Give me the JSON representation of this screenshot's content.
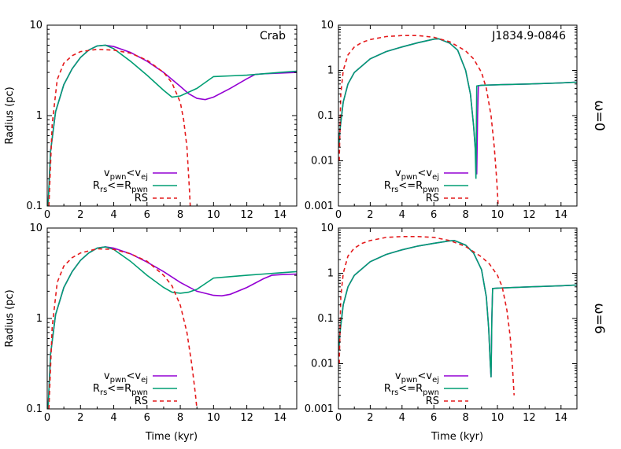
{
  "figure": {
    "y_axis_label": "Radius (pc)",
    "x_axis_label": "Time (kyr)",
    "row_labels": [
      "ω=0",
      "ω=6"
    ]
  },
  "colors": {
    "purple": "#9400d3",
    "teal": "#009e73",
    "red": "#e41a1c",
    "axis": "#000000"
  },
  "chart_data": [
    {
      "id": "crab-omega0",
      "type": "line",
      "title": "Crab",
      "xlabel": "",
      "ylabel": "Radius (pc)",
      "xlim": [
        0,
        15
      ],
      "ylim": [
        0.1,
        10
      ],
      "yscale": "log",
      "xticks": [
        "0",
        "2",
        "4",
        "6",
        "8",
        "10",
        "12",
        "14"
      ],
      "yticks": [
        "0.1",
        "1",
        "10"
      ],
      "legend": [
        "vpwn<vej",
        "Rrs<=Rpwn",
        "RS"
      ],
      "series": [
        {
          "name": "vpwn<vej",
          "color": "purple",
          "dash": false,
          "x": [
            0.05,
            0.2,
            0.5,
            1,
            1.5,
            2,
            2.5,
            3,
            3.5,
            4,
            5,
            6,
            7,
            8,
            8.5,
            9,
            9.5,
            10,
            11,
            12,
            12.5,
            13,
            14,
            15
          ],
          "y": [
            0.1,
            0.4,
            1.1,
            2.2,
            3.3,
            4.4,
            5.3,
            5.9,
            6.0,
            5.8,
            5.0,
            4.0,
            3.0,
            2.1,
            1.75,
            1.55,
            1.5,
            1.6,
            2.0,
            2.55,
            2.85,
            2.9,
            2.95,
            3.0
          ]
        },
        {
          "name": "Rrs<=Rpwn",
          "color": "teal",
          "dash": false,
          "x": [
            0.05,
            0.2,
            0.5,
            1,
            1.5,
            2,
            2.5,
            3,
            3.5,
            4,
            5,
            6,
            7,
            7.5,
            8,
            9,
            10,
            11,
            12,
            13,
            14,
            15
          ],
          "y": [
            0.1,
            0.4,
            1.1,
            2.2,
            3.3,
            4.4,
            5.3,
            5.9,
            6.0,
            5.5,
            4.0,
            2.8,
            1.9,
            1.6,
            1.65,
            2.0,
            2.7,
            2.75,
            2.8,
            2.9,
            3.0,
            3.1
          ]
        },
        {
          "name": "RS",
          "color": "red",
          "dash": true,
          "x": [
            0.1,
            0.3,
            0.6,
            1,
            1.5,
            2,
            3,
            4,
            5,
            6,
            7,
            7.5,
            8,
            8.2,
            8.4,
            8.55,
            8.6
          ],
          "y": [
            0.1,
            0.8,
            2.5,
            3.8,
            4.6,
            5.1,
            5.4,
            5.3,
            4.9,
            4.1,
            3.0,
            2.3,
            1.4,
            0.9,
            0.45,
            0.15,
            0.1
          ]
        }
      ]
    },
    {
      "id": "j1834-omega0",
      "type": "line",
      "title": "J1834.9-0846",
      "xlabel": "",
      "ylabel": "",
      "xlim": [
        0,
        15
      ],
      "ylim": [
        0.001,
        10
      ],
      "yscale": "log",
      "xticks": [
        "0",
        "2",
        "4",
        "6",
        "8",
        "10",
        "12",
        "14"
      ],
      "yticks": [
        "0.001",
        "0.01",
        "0.1",
        "1",
        "10"
      ],
      "legend": [
        "vpwn<vej",
        "Rrs<=Rpwn",
        "RS"
      ],
      "series": [
        {
          "name": "vpwn<vej",
          "color": "purple",
          "dash": false,
          "x": [
            0.02,
            0.1,
            0.3,
            0.6,
            1,
            2,
            3,
            4,
            5,
            6,
            6.3,
            7,
            7.5,
            8,
            8.3,
            8.5,
            8.6,
            8.7,
            8.75,
            8.8,
            9,
            10,
            12,
            14,
            15
          ],
          "y": [
            0.02,
            0.05,
            0.2,
            0.5,
            0.9,
            1.8,
            2.6,
            3.3,
            4.1,
            4.9,
            5.0,
            4.0,
            2.8,
            1.0,
            0.3,
            0.06,
            0.02,
            0.005,
            0.1,
            0.46,
            0.47,
            0.48,
            0.5,
            0.53,
            0.55
          ]
        },
        {
          "name": "Rrs<=Rpwn",
          "color": "teal",
          "dash": false,
          "x": [
            0.02,
            0.1,
            0.3,
            0.6,
            1,
            2,
            3,
            4,
            5,
            6,
            6.3,
            7,
            7.5,
            8,
            8.3,
            8.5,
            8.6,
            8.65,
            8.7,
            8.8,
            9,
            10,
            12,
            14,
            15
          ],
          "y": [
            0.02,
            0.05,
            0.2,
            0.5,
            0.9,
            1.8,
            2.6,
            3.3,
            4.1,
            4.9,
            5.0,
            4.0,
            2.8,
            1.0,
            0.3,
            0.06,
            0.02,
            0.004,
            0.45,
            0.46,
            0.47,
            0.48,
            0.5,
            0.53,
            0.55
          ]
        },
        {
          "name": "RS",
          "color": "red",
          "dash": true,
          "x": [
            0.05,
            0.15,
            0.3,
            0.6,
            1,
            1.5,
            2,
            3,
            4,
            5,
            6,
            7,
            8,
            8.5,
            9,
            9.3,
            9.6,
            9.8,
            9.95,
            10.05
          ],
          "y": [
            0.01,
            0.3,
            1.0,
            2.2,
            3.3,
            4.2,
            4.8,
            5.6,
            5.9,
            5.9,
            5.4,
            4.3,
            2.7,
            1.8,
            0.9,
            0.4,
            0.1,
            0.02,
            0.004,
            0.001
          ]
        }
      ]
    },
    {
      "id": "crab-omega6",
      "type": "line",
      "title": "",
      "xlabel": "Time (kyr)",
      "ylabel": "Radius (pc)",
      "xlim": [
        0,
        15
      ],
      "ylim": [
        0.1,
        10
      ],
      "yscale": "log",
      "xticks": [
        "0",
        "2",
        "4",
        "6",
        "8",
        "10",
        "12",
        "14"
      ],
      "yticks": [
        "0.1",
        "1",
        "10"
      ],
      "legend": [
        "vpwn<vej",
        "Rrs<=Rpwn",
        "RS"
      ],
      "series": [
        {
          "name": "vpwn<vej",
          "color": "purple",
          "dash": false,
          "x": [
            0.05,
            0.2,
            0.5,
            1,
            1.5,
            2,
            2.5,
            3,
            3.5,
            4,
            5,
            6,
            7,
            8,
            9,
            10,
            10.5,
            11,
            12,
            13,
            13.5,
            14,
            15
          ],
          "y": [
            0.1,
            0.4,
            1.1,
            2.2,
            3.3,
            4.4,
            5.3,
            6.0,
            6.2,
            6.0,
            5.2,
            4.2,
            3.3,
            2.5,
            2.0,
            1.8,
            1.78,
            1.85,
            2.2,
            2.75,
            3.0,
            3.05,
            3.1
          ]
        },
        {
          "name": "Rrs<=Rpwn",
          "color": "teal",
          "dash": false,
          "x": [
            0.05,
            0.2,
            0.5,
            1,
            1.5,
            2,
            2.5,
            3,
            3.5,
            4,
            5,
            6,
            7,
            7.5,
            8,
            8.5,
            9,
            10,
            11,
            12,
            13,
            14,
            15
          ],
          "y": [
            0.1,
            0.4,
            1.1,
            2.2,
            3.3,
            4.4,
            5.3,
            6.0,
            6.2,
            5.8,
            4.3,
            3.0,
            2.2,
            1.95,
            1.9,
            1.95,
            2.1,
            2.8,
            2.9,
            3.0,
            3.1,
            3.2,
            3.3
          ]
        },
        {
          "name": "RS",
          "color": "red",
          "dash": true,
          "x": [
            0.1,
            0.3,
            0.6,
            1,
            1.5,
            2,
            3,
            4,
            5,
            6,
            7,
            7.5,
            8,
            8.4,
            8.7,
            8.9,
            9.0
          ],
          "y": [
            0.1,
            0.8,
            2.5,
            3.8,
            4.7,
            5.3,
            5.9,
            5.8,
            5.2,
            4.3,
            3.0,
            2.3,
            1.4,
            0.7,
            0.3,
            0.15,
            0.1
          ]
        }
      ]
    },
    {
      "id": "j1834-omega6",
      "type": "line",
      "title": "",
      "xlabel": "Time (kyr)",
      "ylabel": "",
      "xlim": [
        0,
        15
      ],
      "ylim": [
        0.001,
        10
      ],
      "yscale": "log",
      "xticks": [
        "0",
        "2",
        "4",
        "6",
        "8",
        "10",
        "12",
        "14"
      ],
      "yticks": [
        "0.001",
        "0.01",
        "0.1",
        "1",
        "10"
      ],
      "legend": [
        "vpwn<vej",
        "Rrs<=Rpwn",
        "RS"
      ],
      "series": [
        {
          "name": "vpwn<vej",
          "color": "purple",
          "dash": false,
          "x": [
            0.02,
            0.1,
            0.3,
            0.6,
            1,
            2,
            3,
            4,
            5,
            6,
            7,
            7.3,
            8,
            8.5,
            9,
            9.3,
            9.45,
            9.55,
            9.6,
            9.65,
            9.7,
            10,
            12,
            14,
            15
          ],
          "y": [
            0.02,
            0.05,
            0.2,
            0.5,
            0.9,
            1.8,
            2.6,
            3.3,
            4.0,
            4.6,
            5.2,
            5.3,
            4.2,
            2.8,
            1.2,
            0.3,
            0.06,
            0.01,
            0.005,
            0.1,
            0.46,
            0.47,
            0.5,
            0.53,
            0.55
          ]
        },
        {
          "name": "Rrs<=Rpwn",
          "color": "teal",
          "dash": false,
          "x": [
            0.02,
            0.1,
            0.3,
            0.6,
            1,
            2,
            3,
            4,
            5,
            6,
            7,
            7.3,
            8,
            8.5,
            9,
            9.3,
            9.45,
            9.55,
            9.6,
            9.65,
            9.7,
            10,
            12,
            14,
            15
          ],
          "y": [
            0.02,
            0.05,
            0.2,
            0.5,
            0.9,
            1.8,
            2.6,
            3.3,
            4.0,
            4.6,
            5.2,
            5.3,
            4.2,
            2.8,
            1.2,
            0.3,
            0.06,
            0.01,
            0.005,
            0.1,
            0.46,
            0.47,
            0.5,
            0.53,
            0.55
          ]
        },
        {
          "name": "RS",
          "color": "red",
          "dash": true,
          "x": [
            0.05,
            0.15,
            0.3,
            0.6,
            1,
            1.5,
            2,
            3,
            4,
            5,
            6,
            7,
            8,
            9,
            9.5,
            10,
            10.3,
            10.6,
            10.8,
            10.95,
            11.05
          ],
          "y": [
            0.01,
            0.3,
            1.0,
            2.4,
            3.6,
            4.6,
            5.3,
            6.2,
            6.5,
            6.5,
            6.2,
            5.3,
            3.9,
            2.3,
            1.6,
            0.9,
            0.5,
            0.15,
            0.04,
            0.008,
            0.002
          ]
        }
      ]
    }
  ]
}
